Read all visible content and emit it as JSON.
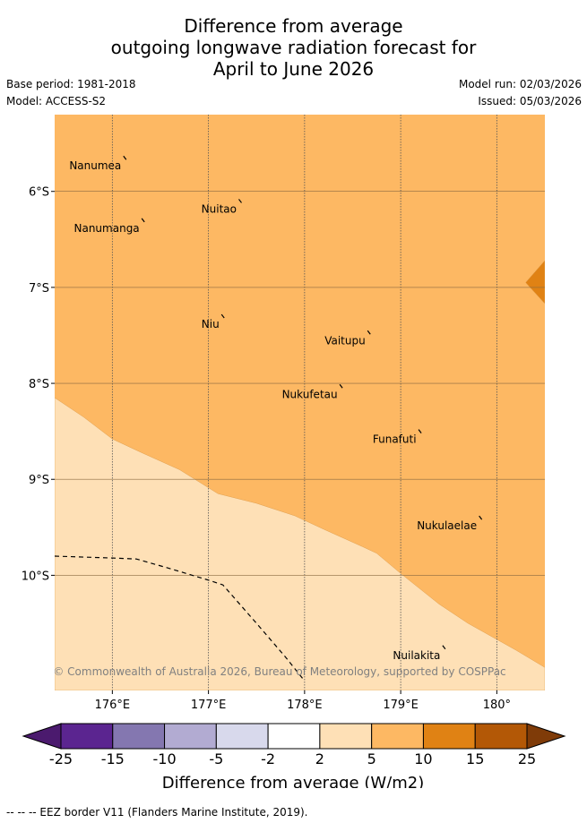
{
  "header": {
    "title_lines": [
      "Difference from average",
      "outgoing longwave radiation forecast for",
      "April to June 2026"
    ],
    "base_period": "Base period: 1981-2018",
    "model": "Model: ACCESS-S2",
    "model_run": "Model run: 02/03/2026",
    "issued": "Issued: 05/03/2026"
  },
  "chart_data": {
    "type": "map",
    "lon_range": [
      175.4,
      180.5
    ],
    "lat_range": [
      -11.2,
      -5.2
    ],
    "x_ticks": [
      {
        "value": 176,
        "label": "176°E"
      },
      {
        "value": 177,
        "label": "177°E"
      },
      {
        "value": 178,
        "label": "178°E"
      },
      {
        "value": 179,
        "label": "179°E"
      },
      {
        "value": 180,
        "label": "180°"
      }
    ],
    "y_ticks": [
      {
        "value": -6,
        "label": "6°S"
      },
      {
        "value": -7,
        "label": "7°S"
      },
      {
        "value": -8,
        "label": "8°S"
      },
      {
        "value": -9,
        "label": "9°S"
      },
      {
        "value": -10,
        "label": "10°S"
      }
    ],
    "background_category": "5 to 10 W/m2",
    "regions": [
      {
        "category": "2 to 5 W/m2",
        "boundary": [
          [
            175.4,
            -8.15
          ],
          [
            175.7,
            -8.35
          ],
          [
            176.0,
            -8.58
          ],
          [
            176.3,
            -8.72
          ],
          [
            176.7,
            -8.9
          ],
          [
            177.1,
            -9.15
          ],
          [
            177.5,
            -9.25
          ],
          [
            177.9,
            -9.38
          ],
          [
            178.2,
            -9.52
          ],
          [
            178.6,
            -9.7
          ],
          [
            178.75,
            -9.77
          ],
          [
            179.0,
            -9.98
          ],
          [
            179.4,
            -10.3
          ],
          [
            179.7,
            -10.5
          ],
          [
            180.2,
            -10.78
          ],
          [
            180.5,
            -10.96
          ],
          [
            180.5,
            -11.2
          ],
          [
            175.4,
            -11.2
          ]
        ]
      },
      {
        "category": "10 to 15 W/m2",
        "boundary": [
          [
            180.5,
            -6.72
          ],
          [
            180.3,
            -6.95
          ],
          [
            180.5,
            -7.17
          ]
        ]
      }
    ],
    "islands": [
      {
        "name": "Nanumea",
        "lon": 176.13,
        "lat": -5.65
      },
      {
        "name": "Nuitao",
        "lon": 177.33,
        "lat": -6.1
      },
      {
        "name": "Nanumanga",
        "lon": 176.32,
        "lat": -6.3
      },
      {
        "name": "Niu",
        "lon": 177.15,
        "lat": -7.3
      },
      {
        "name": "Vaitupu",
        "lon": 178.67,
        "lat": -7.47
      },
      {
        "name": "Nukufetau",
        "lon": 178.38,
        "lat": -8.03
      },
      {
        "name": "Funafuti",
        "lon": 179.2,
        "lat": -8.5
      },
      {
        "name": "Nukulaelae",
        "lon": 179.83,
        "lat": -9.4
      },
      {
        "name": "Nuilakita",
        "lon": 179.45,
        "lat": -10.75
      }
    ],
    "eez_border": [
      [
        175.4,
        -9.8
      ],
      [
        176.0,
        -9.82
      ],
      [
        176.25,
        -9.83
      ],
      [
        176.6,
        -9.93
      ],
      [
        177.0,
        -10.05
      ],
      [
        177.15,
        -10.1
      ],
      [
        177.5,
        -10.5
      ],
      [
        177.8,
        -10.85
      ],
      [
        178.0,
        -11.1
      ]
    ],
    "colorbar": {
      "label": "Difference from average (W/m2)",
      "tick_labels": [
        "-25",
        "-15",
        "-10",
        "-5",
        "-2",
        "2",
        "5",
        "10",
        "15",
        "25"
      ],
      "colors": [
        "#4b1a6e",
        "#5b2590",
        "#8477b0",
        "#b2abd2",
        "#d8d9ec",
        "#ffffff",
        "#fee0b6",
        "#fdb863",
        "#e08214",
        "#b35806",
        "#7f3b08"
      ]
    },
    "copyright": "© Commonwealth of Australia 2026, Bureau of Meteorology, supported by COSPPac"
  },
  "footer": {
    "eez_legend": "--  --  -- EEZ border V11 (Flanders Marine Institute, 2019)."
  }
}
